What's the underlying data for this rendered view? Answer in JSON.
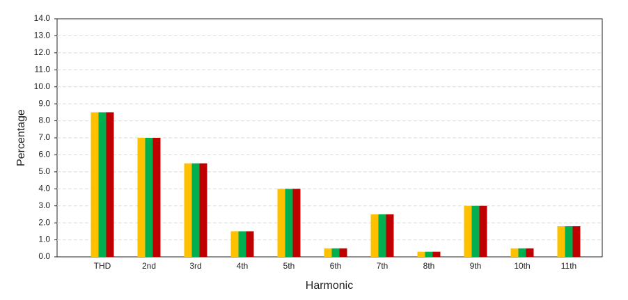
{
  "chart_data": {
    "type": "bar",
    "x_label": "Harmonic",
    "y_label": "Percentage",
    "categories": [
      "THD",
      "2nd",
      "3rd",
      "4th",
      "5th",
      "6th",
      "7th",
      "8th",
      "9th",
      "10th",
      "11th"
    ],
    "series": [
      {
        "color": "#ffc000",
        "values": [
          8.5,
          7.0,
          5.5,
          1.5,
          4.0,
          0.5,
          2.5,
          0.3,
          3.0,
          0.5,
          1.8
        ]
      },
      {
        "color": "#00b050",
        "values": [
          8.5,
          7.0,
          5.5,
          1.5,
          4.0,
          0.5,
          2.5,
          0.3,
          3.0,
          0.5,
          1.8
        ]
      },
      {
        "color": "#c00000",
        "values": [
          8.5,
          7.0,
          5.5,
          1.5,
          4.0,
          0.5,
          2.5,
          0.3,
          3.0,
          0.5,
          1.8
        ]
      }
    ],
    "ylim": [
      0,
      14
    ],
    "yticks": [
      {
        "value": 0,
        "label": "0.0"
      },
      {
        "value": 1,
        "label": "1.0"
      },
      {
        "value": 2,
        "label": "2.0"
      },
      {
        "value": 3,
        "label": "3.0"
      },
      {
        "value": 4,
        "label": "4.0"
      },
      {
        "value": 5,
        "label": "5.0"
      },
      {
        "value": 6,
        "label": "6.0"
      },
      {
        "value": 7,
        "label": "7.0"
      },
      {
        "value": 8,
        "label": "8.0"
      },
      {
        "value": 9,
        "label": "9.0"
      },
      {
        "value": 10,
        "label": "10.0"
      },
      {
        "value": 11,
        "label": "11.0"
      },
      {
        "value": 12,
        "label": "12.0"
      },
      {
        "value": 13,
        "label": "13.0"
      },
      {
        "value": 14,
        "label": "14.0"
      }
    ],
    "grid": true
  }
}
